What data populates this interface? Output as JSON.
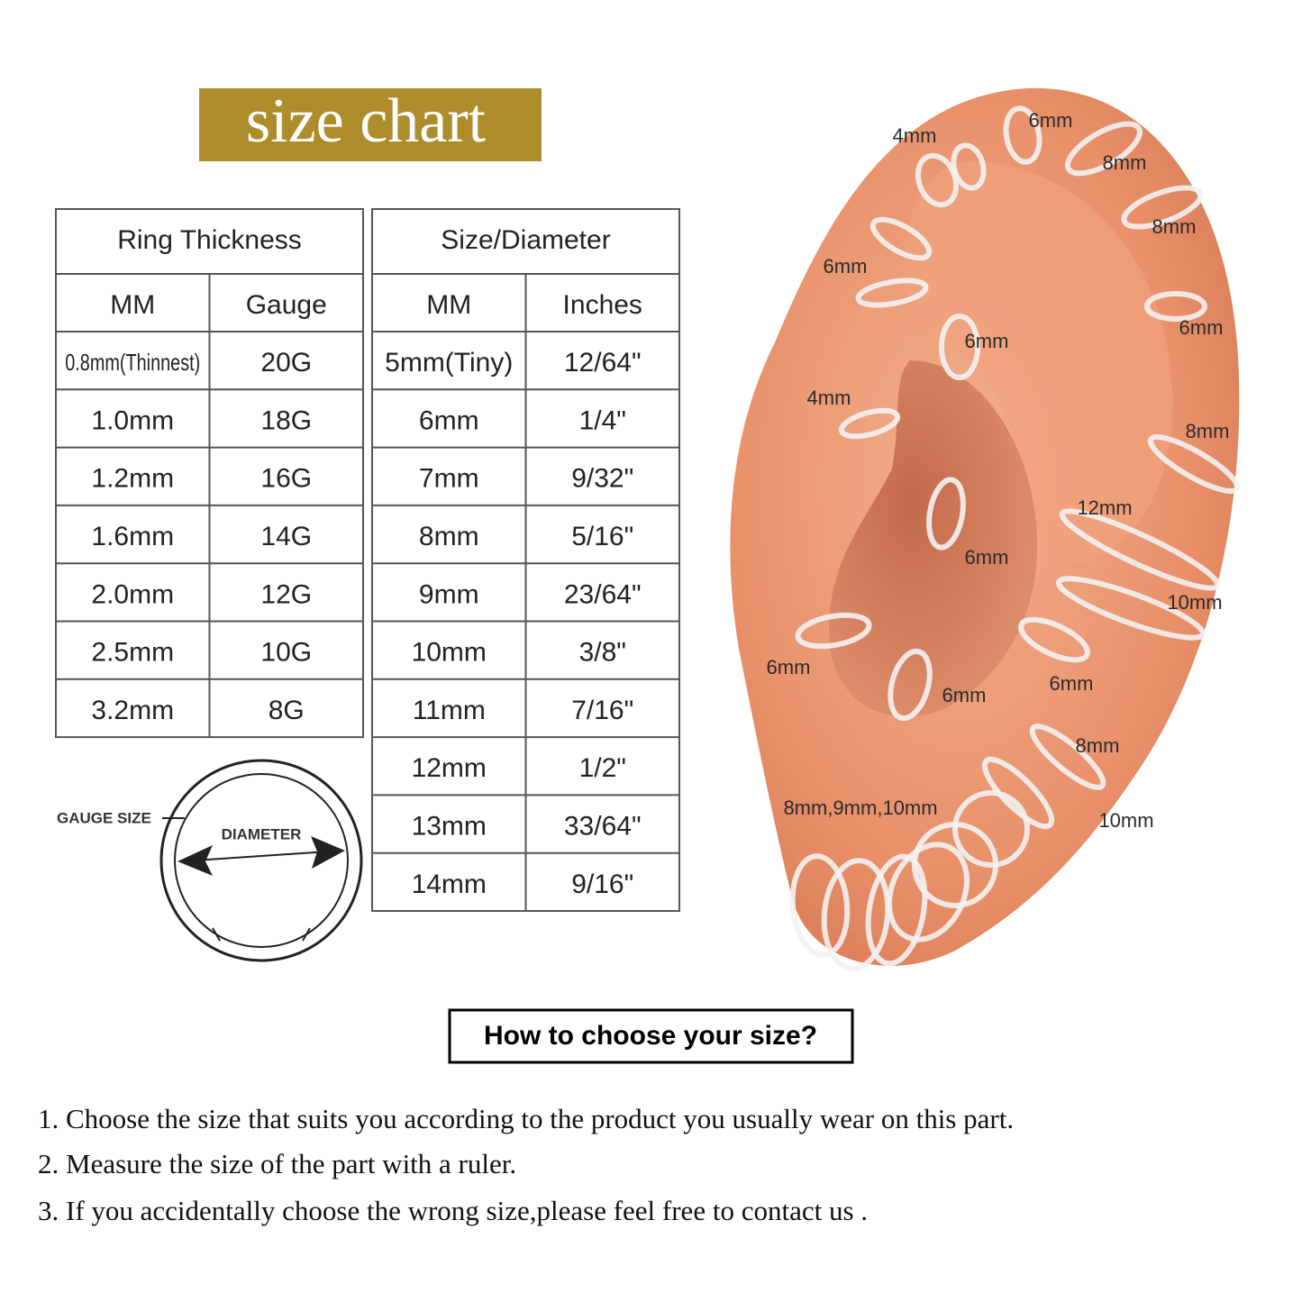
{
  "header": {
    "title": "size chart"
  },
  "thickness_table": {
    "title": "Ring Thickness",
    "columns": [
      "MM",
      "Gauge"
    ],
    "rows": [
      [
        "0.8mm(Thinnest)",
        "20G"
      ],
      [
        "1.0mm",
        "18G"
      ],
      [
        "1.2mm",
        "16G"
      ],
      [
        "1.6mm",
        "14G"
      ],
      [
        "2.0mm",
        "12G"
      ],
      [
        "2.5mm",
        "10G"
      ],
      [
        "3.2mm",
        "8G"
      ]
    ]
  },
  "diameter_table": {
    "title": "Size/Diameter",
    "columns": [
      "MM",
      "Inches"
    ],
    "rows": [
      [
        "5mm(Tiny)",
        "12/64\""
      ],
      [
        "6mm",
        "1/4\""
      ],
      [
        "7mm",
        "9/32\""
      ],
      [
        "8mm",
        "5/16\""
      ],
      [
        "9mm",
        "23/64\""
      ],
      [
        "10mm",
        "3/8\""
      ],
      [
        "11mm",
        "7/16\""
      ],
      [
        "12mm",
        "1/2\""
      ],
      [
        "13mm",
        "33/64\""
      ],
      [
        "14mm",
        "9/16\""
      ]
    ]
  },
  "ring_diagram": {
    "gauge_label": "GAUGE SIZE",
    "diameter_label": "DIAMETER"
  },
  "ear_labels": [
    "4mm",
    "6mm",
    "8mm",
    "8mm",
    "6mm",
    "6mm",
    "6mm",
    "4mm",
    "8mm",
    "12mm",
    "6mm",
    "10mm",
    "6mm",
    "6mm",
    "6mm",
    "8mm",
    "8mm,9mm,10mm",
    "10mm"
  ],
  "how_to": {
    "heading": "How to choose your size?",
    "steps": [
      "1. Choose the size that suits you according to the product you usually wear on this part.",
      "2. Measure the size of the part with a ruler.",
      "3. If you accidentally choose the wrong size,please feel free to contact us ."
    ]
  }
}
